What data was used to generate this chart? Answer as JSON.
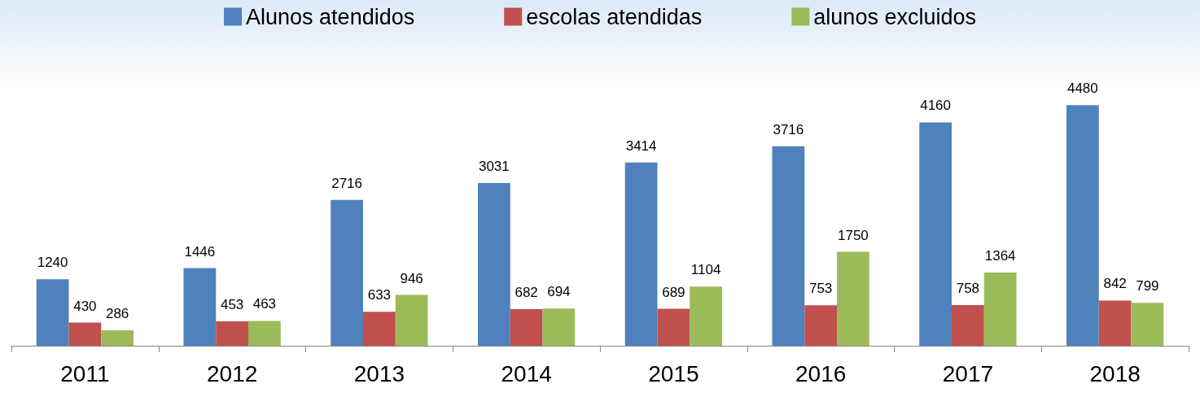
{
  "chart_data": {
    "type": "bar",
    "categories": [
      "2011",
      "2012",
      "2013",
      "2014",
      "2015",
      "2016",
      "2017",
      "2018"
    ],
    "series": [
      {
        "name": "Alunos atendidos",
        "color": "#4f81bd",
        "values": [
          1240,
          1446,
          2716,
          3031,
          3414,
          3716,
          4160,
          4480
        ]
      },
      {
        "name": "escolas atendidas",
        "color": "#c0504d",
        "values": [
          430,
          453,
          633,
          682,
          689,
          753,
          758,
          842
        ]
      },
      {
        "name": "alunos excluidos",
        "color": "#9bbb59",
        "values": [
          286,
          463,
          946,
          694,
          1104,
          1750,
          1364,
          799
        ]
      }
    ],
    "data_labels": true,
    "legend": "top"
  }
}
